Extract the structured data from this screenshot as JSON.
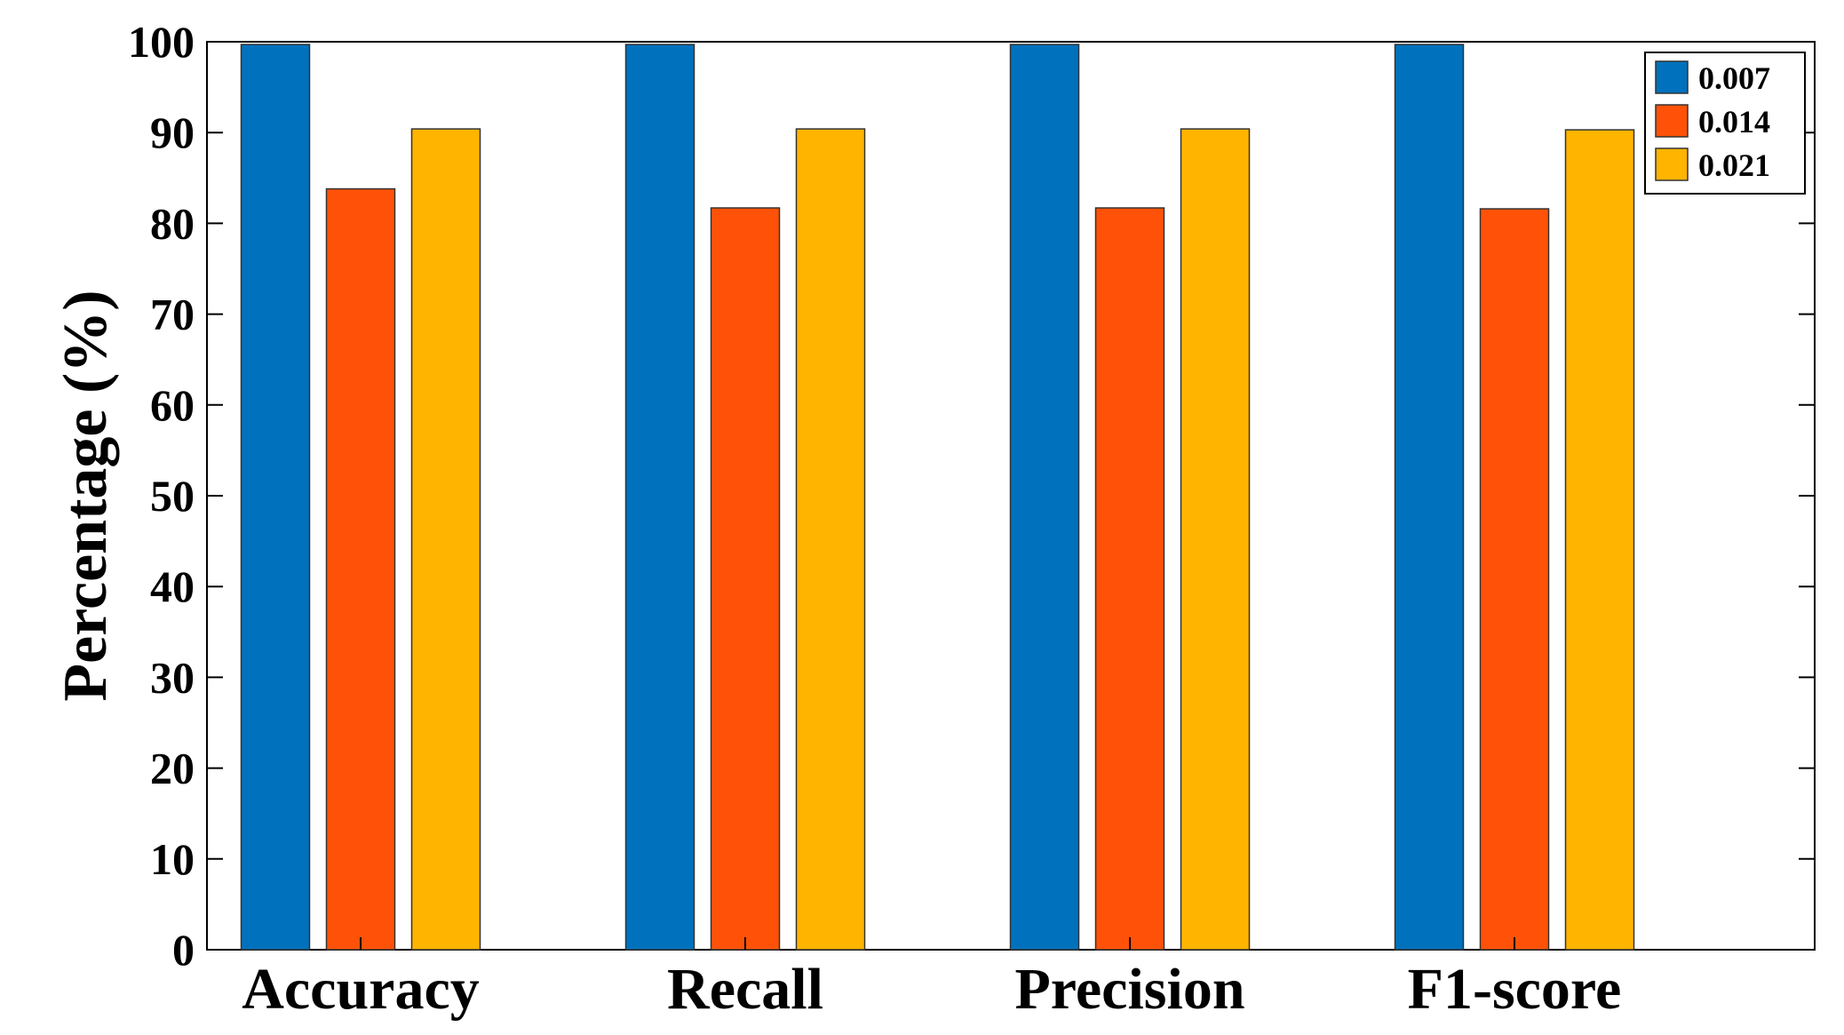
{
  "chart_data": {
    "type": "bar",
    "title": "",
    "xlabel": "",
    "ylabel": "Percentage (%)",
    "ylim": [
      0,
      100
    ],
    "yticks": [
      0,
      10,
      20,
      30,
      40,
      50,
      60,
      70,
      80,
      90,
      100
    ],
    "grid": false,
    "legend_position": "top-right",
    "categories": [
      "Accuracy",
      "Recall",
      "Precision",
      "F1-score"
    ],
    "series": [
      {
        "name": "0.007",
        "color": "#0072BD",
        "values": [
          99.7,
          99.7,
          99.7,
          99.7
        ]
      },
      {
        "name": "0.014",
        "color": "#FF5208",
        "values": [
          83.8,
          81.7,
          81.7,
          81.6
        ]
      },
      {
        "name": "0.021",
        "color": "#FFB400",
        "values": [
          90.4,
          90.4,
          90.4,
          90.3
        ]
      }
    ]
  }
}
